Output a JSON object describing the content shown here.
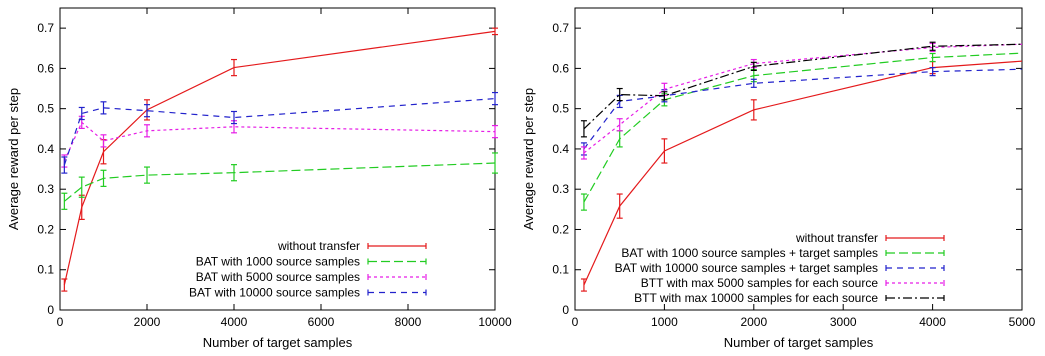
{
  "chart_data": [
    {
      "type": "line",
      "xlabel": "Number of target samples",
      "ylabel": "Average reward per step",
      "xlim": [
        0,
        10000
      ],
      "ylim": [
        0,
        0.75
      ],
      "xticks": [
        0,
        2000,
        4000,
        6000,
        8000,
        10000
      ],
      "yticks": [
        0,
        0.1,
        0.2,
        0.3,
        0.4,
        0.5,
        0.6,
        0.7
      ],
      "legend_position": "bottom-right",
      "grid": false,
      "series": [
        {
          "name": "without transfer",
          "color": "#e41a1c",
          "dash": "solid",
          "x": [
            100,
            500,
            1000,
            2000,
            4000,
            10000
          ],
          "y": [
            0.062,
            0.255,
            0.393,
            0.497,
            0.602,
            0.692
          ],
          "err": [
            0.015,
            0.03,
            0.03,
            0.025,
            0.02,
            0.008
          ]
        },
        {
          "name": "BAT with 1000 source samples",
          "color": "#22cc22",
          "dash": "long",
          "x": [
            100,
            500,
            1000,
            2000,
            4000,
            10000
          ],
          "y": [
            0.27,
            0.305,
            0.327,
            0.335,
            0.341,
            0.365
          ],
          "err": [
            0.02,
            0.025,
            0.02,
            0.02,
            0.02,
            0.025
          ]
        },
        {
          "name": "BAT with 5000 source samples",
          "color": "#e61ee6",
          "dash": "short",
          "x": [
            100,
            500,
            1000,
            2000,
            4000,
            10000
          ],
          "y": [
            0.37,
            0.466,
            0.42,
            0.445,
            0.455,
            0.443
          ],
          "err": [
            0.015,
            0.015,
            0.015,
            0.015,
            0.015,
            0.015
          ]
        },
        {
          "name": "BAT with 10000 source samples",
          "color": "#2222cc",
          "dash": "medium",
          "x": [
            100,
            500,
            1000,
            2000,
            4000,
            10000
          ],
          "y": [
            0.36,
            0.488,
            0.502,
            0.495,
            0.478,
            0.525
          ],
          "err": [
            0.02,
            0.015,
            0.015,
            0.015,
            0.015,
            0.015
          ]
        }
      ]
    },
    {
      "type": "line",
      "xlabel": "Number of target samples",
      "ylabel": "Average reward per step",
      "xlim": [
        0,
        5000
      ],
      "ylim": [
        0,
        0.75
      ],
      "xticks": [
        0,
        1000,
        2000,
        3000,
        4000,
        5000
      ],
      "yticks": [
        0,
        0.1,
        0.2,
        0.3,
        0.4,
        0.5,
        0.6,
        0.7
      ],
      "legend_position": "bottom-right",
      "grid": false,
      "series": [
        {
          "name": "without transfer",
          "color": "#e41a1c",
          "dash": "solid",
          "x": [
            100,
            500,
            1000,
            2000,
            4000,
            5000
          ],
          "y": [
            0.062,
            0.258,
            0.395,
            0.497,
            0.602,
            0.618
          ],
          "err": [
            0.015,
            0.03,
            0.03,
            0.025,
            0.015,
            0
          ]
        },
        {
          "name": "BAT with 1000 source samples + target samples",
          "color": "#22cc22",
          "dash": "long",
          "x": [
            100,
            500,
            1000,
            2000,
            4000,
            5000
          ],
          "y": [
            0.268,
            0.425,
            0.522,
            0.582,
            0.627,
            0.638
          ],
          "err": [
            0.02,
            0.02,
            0.015,
            0.015,
            0.01,
            0
          ]
        },
        {
          "name": "BAT with 10000 source samples + target samples",
          "color": "#2222cc",
          "dash": "medium",
          "x": [
            100,
            500,
            1000,
            2000,
            4000,
            5000
          ],
          "y": [
            0.4,
            0.518,
            0.532,
            0.563,
            0.592,
            0.598
          ],
          "err": [
            0.015,
            0.015,
            0.015,
            0.01,
            0.01,
            0
          ]
        },
        {
          "name": "BTT with max 5000 samples for each source",
          "color": "#e61ee6",
          "dash": "short",
          "x": [
            100,
            500,
            1000,
            2000,
            4000,
            5000
          ],
          "y": [
            0.39,
            0.46,
            0.548,
            0.612,
            0.652,
            0.66
          ],
          "err": [
            0.015,
            0.015,
            0.015,
            0.01,
            0.01,
            0
          ]
        },
        {
          "name": "BTT with max 10000 samples for each source",
          "color": "#000000",
          "dash": "dashdot",
          "x": [
            100,
            500,
            1000,
            2000,
            4000,
            5000
          ],
          "y": [
            0.45,
            0.535,
            0.532,
            0.605,
            0.655,
            0.66
          ],
          "err": [
            0.02,
            0.015,
            0.01,
            0.01,
            0.01,
            0
          ]
        }
      ]
    }
  ]
}
